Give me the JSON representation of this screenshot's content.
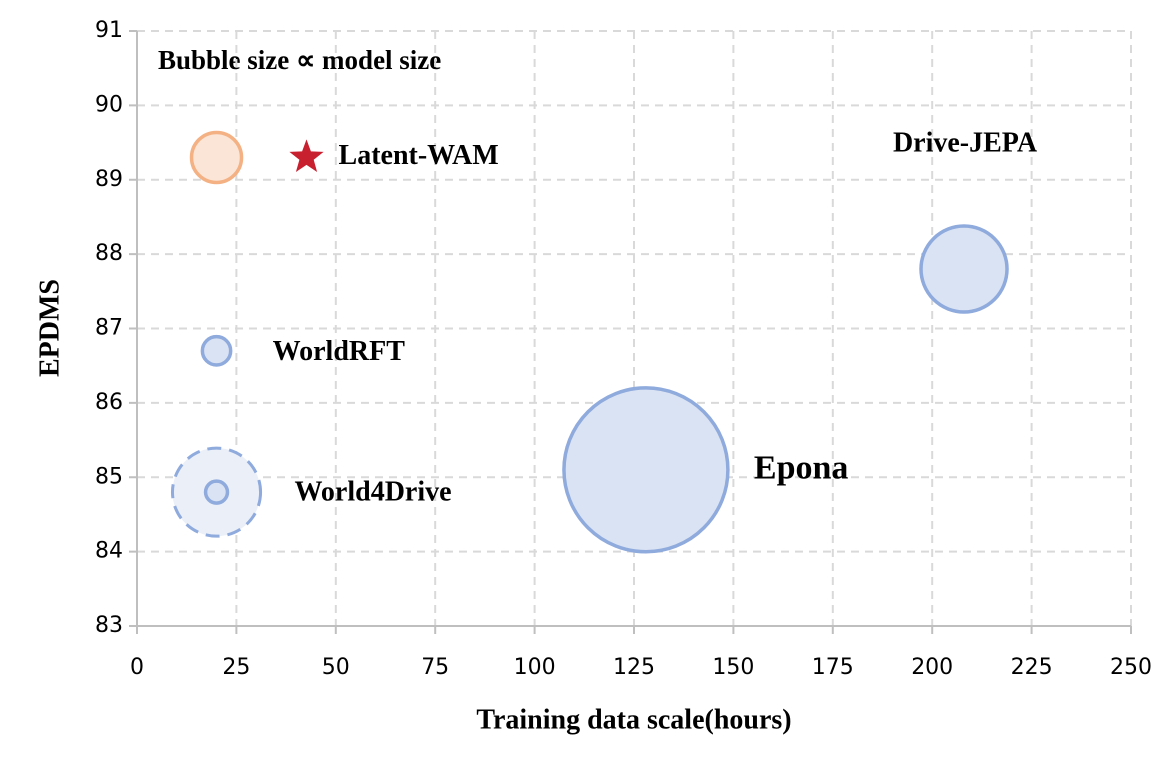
{
  "chart_data": {
    "type": "bubble",
    "annotation": "Bubble size ∝ model size",
    "x_label": "Training data scale(hours)",
    "y_label": "EPDMS",
    "xlim": [
      0,
      250
    ],
    "xticks": [
      0,
      25,
      50,
      75,
      100,
      125,
      150,
      175,
      200,
      225,
      250
    ],
    "ylim": [
      83,
      91
    ],
    "yticks": [
      83,
      84,
      85,
      86,
      87,
      88,
      89,
      90,
      91
    ],
    "grid": true,
    "points": [
      {
        "label": "Latent-WAM",
        "x": 20,
        "y": 89.3,
        "size": 6.25,
        "color": "#f4b183",
        "fill": "#fbe5d6",
        "marker": "star",
        "marker_color": "#c8202f"
      },
      {
        "label": "WorldRFT",
        "x": 20,
        "y": 86.7,
        "size": 2,
        "color": "#8faadc",
        "fill": "#dae3f3"
      },
      {
        "label": "World4Drive",
        "x": 20,
        "y": 84.8,
        "size": 1.2,
        "dashed_size": 19.4,
        "color": "#8faadc",
        "fill": "#dae3f3"
      },
      {
        "label": "Epona",
        "x": 128,
        "y": 85.1,
        "size": 67.2,
        "color": "#8faadc",
        "fill": "#dae3f3"
      },
      {
        "label": "Drive-JEPA",
        "x": 208,
        "y": 87.8,
        "size": 18.5,
        "color": "#8faadc",
        "fill": "#dae3f3"
      }
    ]
  }
}
